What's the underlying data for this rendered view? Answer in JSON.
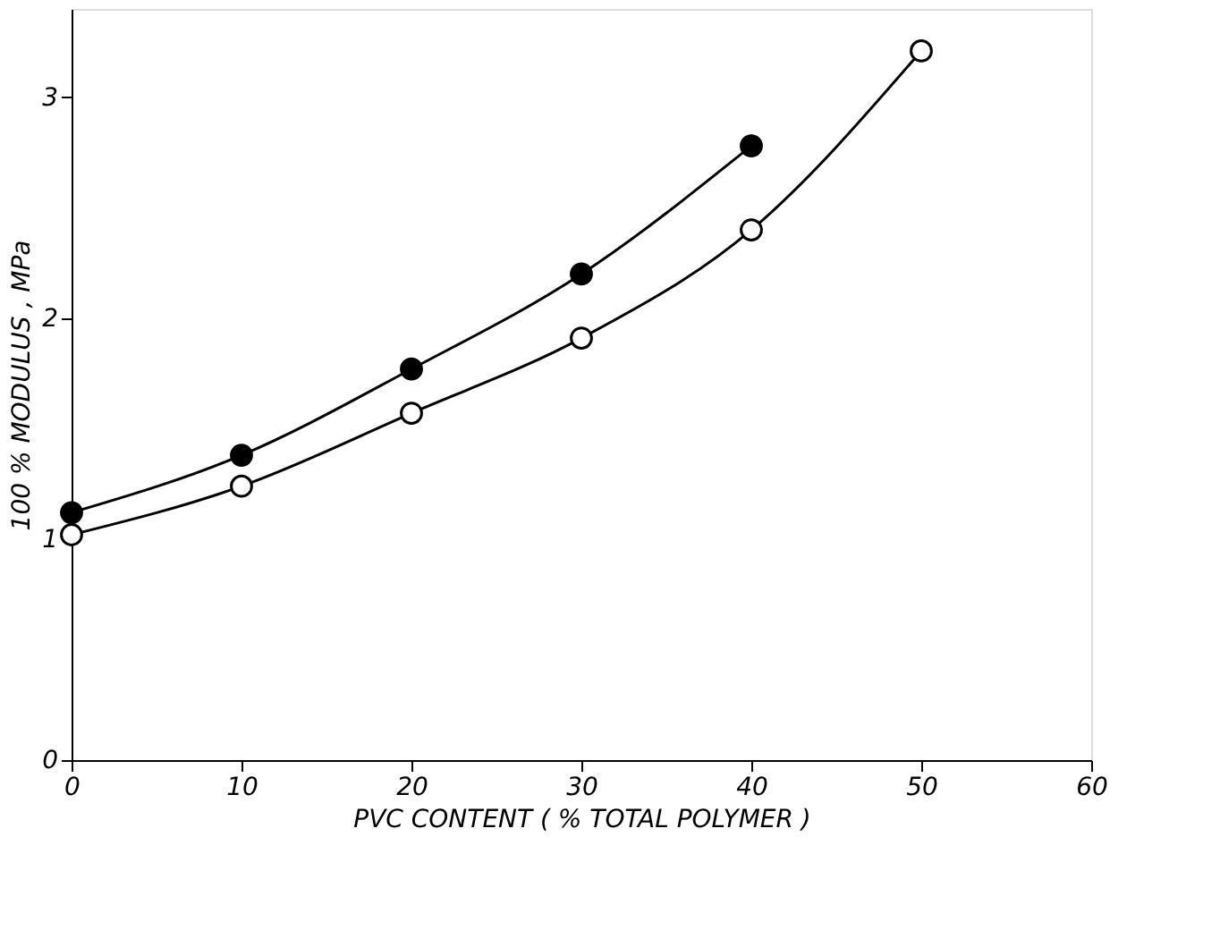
{
  "chart_data": {
    "type": "line",
    "xlabel": "PVC CONTENT ( % TOTAL POLYMER )",
    "ylabel": "100 % MODULUS , MPa",
    "xlim": [
      0,
      60
    ],
    "xticks": [
      0,
      10,
      20,
      30,
      40,
      50,
      60
    ],
    "ylim": [
      0,
      3.4
    ],
    "yticks": [
      0,
      1,
      2,
      3
    ],
    "grid": false,
    "marker": "circle",
    "line_style": "solid",
    "series": [
      {
        "color": "#000000",
        "x": [
          0,
          10,
          20,
          30,
          40
        ],
        "values": [
          1.12,
          1.38,
          1.77,
          2.2,
          2.78
        ]
      },
      {
        "color": "#000000",
        "x": [
          0,
          10,
          20,
          30,
          40,
          50
        ],
        "values": [
          1.02,
          1.24,
          1.57,
          1.91,
          2.4,
          3.21
        ]
      }
    ]
  }
}
